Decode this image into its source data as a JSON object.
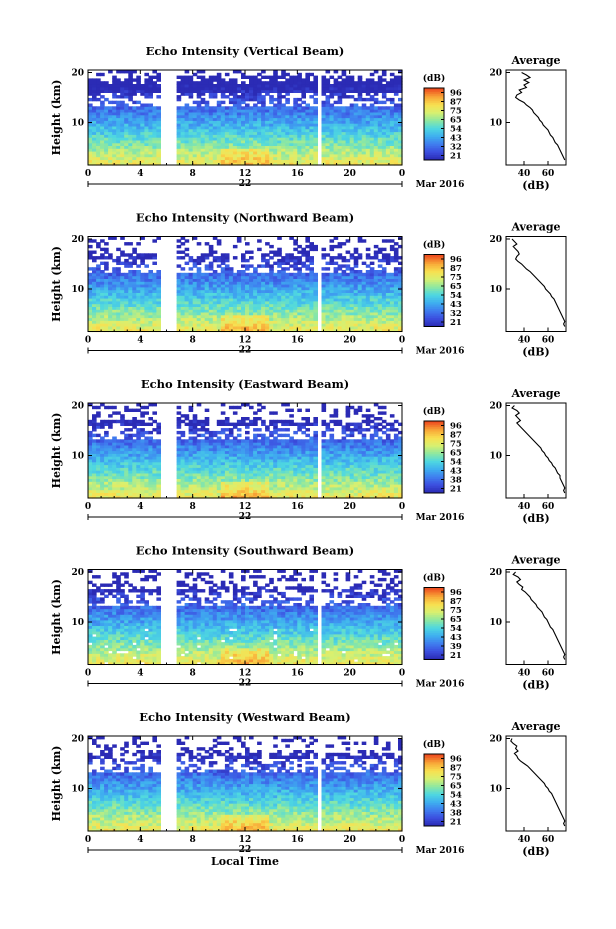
{
  "figure": {
    "xlabel": "Local Time",
    "date_label": "Mar 2016",
    "day_label": "22",
    "colorbar_unit": "(dB)",
    "avg_title": "Average",
    "avg_xlabel": "(dB)",
    "colorscale": [
      "#2b2bb5",
      "#3c50e0",
      "#3f7fef",
      "#3fb0ef",
      "#4fd8e0",
      "#8fe8a0",
      "#d8f070",
      "#f8e050",
      "#f8a838",
      "#ee5020"
    ]
  },
  "chart_data": [
    {
      "type": "heatmap",
      "title": "Echo Intensity (Vertical Beam)",
      "ylabel": "Height (km)",
      "x_ticks": [
        "0",
        "4",
        "8",
        "12",
        "16",
        "20",
        "0"
      ],
      "y_ticks": [
        "20",
        "10"
      ],
      "xlim": [
        0,
        24
      ],
      "ylim": [
        1.5,
        20.5
      ],
      "data_gaps_hours": [
        [
          5.5,
          6.7
        ],
        [
          17.4,
          17.9
        ]
      ],
      "colorbar_ticks": [
        "96",
        "87",
        "75",
        "65",
        "54",
        "43",
        "32",
        "21"
      ],
      "average_profile": {
        "type": "line",
        "x_ticks": [
          "40",
          "60"
        ],
        "y_ticks": [
          "20",
          "10"
        ],
        "xlim": [
          25,
          75
        ],
        "ylim": [
          1.5,
          20.5
        ],
        "x": [
          38,
          42,
          45,
          40,
          44,
          40,
          42,
          36,
          38,
          34,
          33,
          36,
          40,
          42,
          45,
          47,
          48,
          50,
          52,
          53,
          55,
          56,
          58,
          60,
          61,
          62,
          64,
          65,
          66,
          68,
          69,
          70,
          71,
          72,
          73,
          74
        ],
        "y": [
          20,
          19.5,
          19,
          18.5,
          18,
          17.5,
          17,
          16.5,
          16,
          15.5,
          15,
          14.5,
          14,
          13.5,
          13,
          12.5,
          12,
          11.5,
          11,
          10.5,
          10,
          9.5,
          9,
          8.5,
          8,
          7.5,
          7,
          6.5,
          6,
          5.5,
          5,
          4.5,
          4,
          3.5,
          3,
          2.5
        ]
      }
    },
    {
      "type": "heatmap",
      "title": "Echo Intensity (Northward Beam)",
      "ylabel": "Height (km)",
      "x_ticks": [
        "0",
        "4",
        "8",
        "12",
        "16",
        "20",
        "0"
      ],
      "y_ticks": [
        "20",
        "10"
      ],
      "xlim": [
        0,
        24
      ],
      "ylim": [
        1.5,
        20.5
      ],
      "data_gaps_hours": [
        [
          5.5,
          6.7
        ],
        [
          17.4,
          17.9
        ]
      ],
      "colorbar_ticks": [
        "96",
        "87",
        "75",
        "65",
        "54",
        "43",
        "32",
        "21"
      ],
      "average_profile": {
        "type": "line",
        "x_ticks": [
          "40",
          "60"
        ],
        "y_ticks": [
          "20",
          "10"
        ],
        "xlim": [
          25,
          75
        ],
        "ylim": [
          1.5,
          20.5
        ],
        "x": [
          30,
          32,
          34,
          31,
          33,
          35,
          36,
          34,
          33,
          35,
          38,
          40,
          42,
          45,
          47,
          49,
          51,
          53,
          55,
          57,
          58,
          60,
          62,
          63,
          65,
          66,
          67,
          68,
          69,
          70,
          71,
          72,
          73,
          74,
          73,
          74
        ],
        "y": [
          20,
          19.5,
          19,
          18.5,
          18,
          17.5,
          17,
          16.5,
          16,
          15.5,
          15,
          14.5,
          14,
          13.5,
          13,
          12.5,
          12,
          11.5,
          11,
          10.5,
          10,
          9.5,
          9,
          8.5,
          8,
          7.5,
          7,
          6.5,
          6,
          5.5,
          5,
          4.5,
          4,
          3.5,
          3,
          2.5
        ]
      }
    },
    {
      "type": "heatmap",
      "title": "Echo Intensity (Eastward Beam)",
      "ylabel": "Height (km)",
      "x_ticks": [
        "0",
        "4",
        "8",
        "12",
        "16",
        "20",
        "0"
      ],
      "y_ticks": [
        "20",
        "10"
      ],
      "xlim": [
        0,
        24
      ],
      "ylim": [
        1.5,
        20.5
      ],
      "data_gaps_hours": [
        [
          5.5,
          6.7
        ],
        [
          17.4,
          17.9
        ]
      ],
      "colorbar_ticks": [
        "96",
        "87",
        "75",
        "65",
        "54",
        "43",
        "38",
        "21"
      ],
      "average_profile": {
        "type": "line",
        "x_ticks": [
          "40",
          "60"
        ],
        "y_ticks": [
          "20",
          "10"
        ],
        "xlim": [
          25,
          75
        ],
        "ylim": [
          1.5,
          20.5
        ],
        "x": [
          32,
          30,
          34,
          36,
          33,
          35,
          37,
          34,
          36,
          38,
          40,
          42,
          44,
          46,
          48,
          50,
          52,
          54,
          55,
          57,
          58,
          60,
          61,
          63,
          64,
          66,
          67,
          68,
          70,
          70,
          71,
          72,
          73,
          74,
          73,
          74
        ],
        "y": [
          20,
          19.5,
          19,
          18.5,
          18,
          17.5,
          17,
          16.5,
          16,
          15.5,
          15,
          14.5,
          14,
          13.5,
          13,
          12.5,
          12,
          11.5,
          11,
          10.5,
          10,
          9.5,
          9,
          8.5,
          8,
          7.5,
          7,
          6.5,
          6,
          5.5,
          5,
          4.5,
          4,
          3.5,
          3,
          2.5
        ]
      }
    },
    {
      "type": "heatmap",
      "title": "Echo Intensity (Southward Beam)",
      "ylabel": "Height (km)",
      "x_ticks": [
        "0",
        "4",
        "8",
        "12",
        "16",
        "20",
        "0"
      ],
      "y_ticks": [
        "20",
        "10"
      ],
      "xlim": [
        0,
        24
      ],
      "ylim": [
        1.5,
        20.5
      ],
      "data_gaps_hours": [
        [
          5.5,
          6.7
        ],
        [
          17.4,
          17.9
        ]
      ],
      "colorbar_ticks": [
        "96",
        "87",
        "75",
        "65",
        "54",
        "43",
        "39",
        "21"
      ],
      "average_profile": {
        "type": "line",
        "x_ticks": [
          "40",
          "60"
        ],
        "y_ticks": [
          "20",
          "10"
        ],
        "xlim": [
          25,
          75
        ],
        "ylim": [
          1.5,
          20.5
        ],
        "x": [
          33,
          31,
          35,
          37,
          34,
          36,
          39,
          38,
          41,
          43,
          45,
          46,
          48,
          50,
          51,
          53,
          55,
          56,
          57,
          59,
          60,
          61,
          62,
          64,
          65,
          66,
          67,
          68,
          69,
          70,
          71,
          72,
          73,
          74,
          73,
          74
        ],
        "y": [
          20,
          19.5,
          19,
          18.5,
          18,
          17.5,
          17,
          16.5,
          16,
          15.5,
          15,
          14.5,
          14,
          13.5,
          13,
          12.5,
          12,
          11.5,
          11,
          10.5,
          10,
          9.5,
          9,
          8.5,
          8,
          7.5,
          7,
          6.5,
          6,
          5.5,
          5,
          4.5,
          4,
          3.5,
          3,
          2.5
        ]
      }
    },
    {
      "type": "heatmap",
      "title": "Echo Intensity (Westward Beam)",
      "ylabel": "Height (km)",
      "x_ticks": [
        "0",
        "4",
        "8",
        "12",
        "16",
        "20",
        "0"
      ],
      "y_ticks": [
        "20",
        "10"
      ],
      "xlim": [
        0,
        24
      ],
      "ylim": [
        1.5,
        20.5
      ],
      "data_gaps_hours": [
        [
          5.5,
          6.7
        ],
        [
          17.4,
          17.9
        ]
      ],
      "colorbar_ticks": [
        "96",
        "87",
        "75",
        "65",
        "54",
        "43",
        "38",
        "21"
      ],
      "average_profile": {
        "type": "line",
        "x_ticks": [
          "40",
          "60"
        ],
        "y_ticks": [
          "20",
          "10"
        ],
        "xlim": [
          25,
          75
        ],
        "ylim": [
          1.5,
          20.5
        ],
        "x": [
          30,
          29,
          31,
          34,
          33,
          35,
          32,
          34,
          35,
          37,
          40,
          43,
          45,
          47,
          49,
          51,
          53,
          55,
          57,
          58,
          60,
          61,
          63,
          64,
          65,
          66,
          67,
          68,
          69,
          70,
          71,
          72,
          73,
          74,
          73,
          74
        ],
        "y": [
          20,
          19.5,
          19,
          18.5,
          18,
          17.5,
          17,
          16.5,
          16,
          15.5,
          15,
          14.5,
          14,
          13.5,
          13,
          12.5,
          12,
          11.5,
          11,
          10.5,
          10,
          9.5,
          9,
          8.5,
          8,
          7.5,
          7,
          6.5,
          6,
          5.5,
          5,
          4.5,
          4,
          3.5,
          3,
          2.5
        ]
      }
    }
  ]
}
